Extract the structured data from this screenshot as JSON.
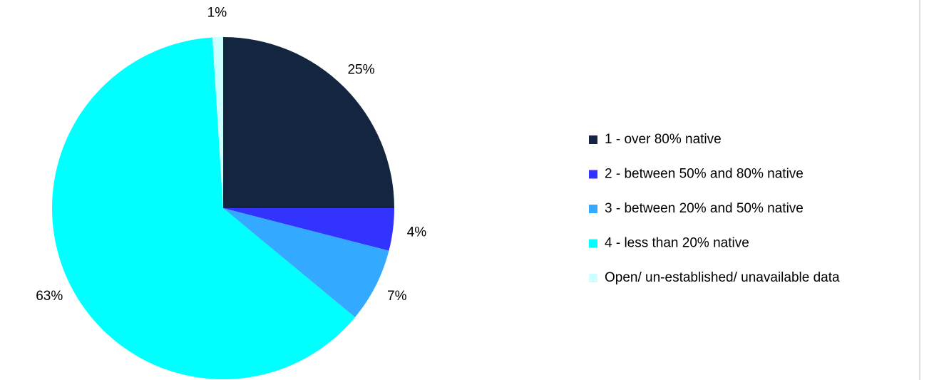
{
  "chart_data": {
    "type": "pie",
    "categories": [
      "1 - over 80% native",
      "2 - between 50% and 80% native",
      "3 - between 20% and 50% native",
      "4 - less than 20% native",
      "Open/ un-established/ unavailable data"
    ],
    "values": [
      25,
      4,
      7,
      63,
      1
    ],
    "value_labels": [
      "25%",
      "4%",
      "7%",
      "63%",
      "1%"
    ],
    "colors": [
      "#14253f",
      "#3333ff",
      "#33aaff",
      "#00ffff",
      "#ccffff"
    ],
    "legend": "right"
  }
}
